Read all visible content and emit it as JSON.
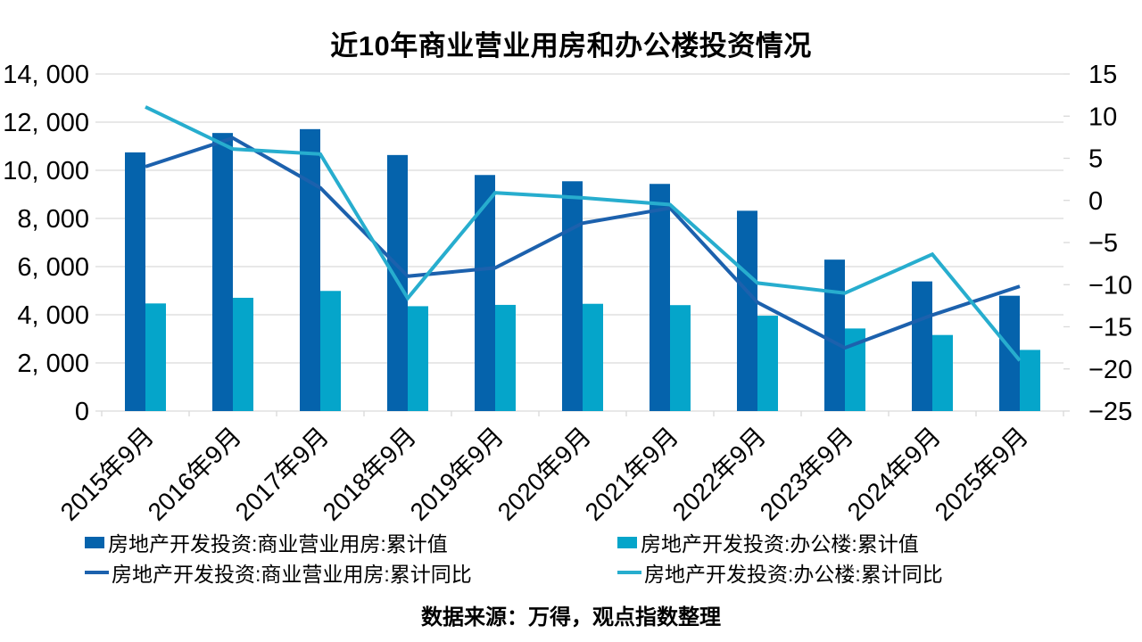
{
  "title": "近10年商业营业用房和办公楼投资情况",
  "source": "数据来源：万得，观点指数整理",
  "colors": {
    "background": "#FFFFFF",
    "grid": "#D9D9D9",
    "text": "#000000",
    "bar_commercial": "#0563AC",
    "bar_office": "#05A5CA",
    "line_commercial": "#1C61AD",
    "line_office": "#27ADCE"
  },
  "left_axis": {
    "tick_labels": [
      "0",
      "2, 000",
      "4, 000",
      "6, 000",
      "8, 000",
      "10, 000",
      "12, 000",
      "14, 000"
    ],
    "tick_values": [
      0,
      2000,
      4000,
      6000,
      8000,
      10000,
      12000,
      14000
    ]
  },
  "right_axis": {
    "tick_labels": [
      "−25",
      "−20",
      "−15",
      "−10",
      "−5",
      "0",
      "5",
      "10",
      "15"
    ],
    "tick_values": [
      -25,
      -20,
      -15,
      -10,
      -5,
      0,
      5,
      10,
      15
    ]
  },
  "chart_data": {
    "type": "combo-bar-line",
    "title": "近10年商业营业用房和办公楼投资情况",
    "categories": [
      "2015年9月",
      "2016年9月",
      "2017年9月",
      "2018年9月",
      "2019年9月",
      "2020年9月",
      "2021年9月",
      "2022年9月",
      "2023年9月",
      "2024年9月",
      "2025年9月"
    ],
    "left_ylim": [
      0,
      14000
    ],
    "right_ylim": [
      -25,
      15
    ],
    "grid": "horizontal",
    "legend_position": "bottom",
    "series": [
      {
        "name": "房地产开发投资:商业营业用房:累计值",
        "type": "bar",
        "axis": "left",
        "color": "#0563AC",
        "values": [
          10745,
          11550,
          11710,
          10635,
          9805,
          9545,
          9435,
          8320,
          6290,
          5385,
          4790
        ]
      },
      {
        "name": "房地产开发投资:办公楼:累计值",
        "type": "bar",
        "axis": "left",
        "color": "#05A5CA",
        "values": [
          4470,
          4705,
          4990,
          4355,
          4410,
          4455,
          4400,
          3960,
          3430,
          3160,
          2540
        ]
      },
      {
        "name": "房地产开发投资:商业营业用房:累计同比",
        "type": "line",
        "axis": "right",
        "color": "#1C61AD",
        "values": [
          4.0,
          7.4,
          1.5,
          -9.0,
          -8.0,
          -2.7,
          -0.9,
          -12.1,
          -17.5,
          -13.6,
          -10.2
        ]
      },
      {
        "name": "房地产开发投资:办公楼:累计同比",
        "type": "line",
        "axis": "right",
        "color": "#27ADCE",
        "values": [
          11.1,
          6.1,
          5.5,
          -11.6,
          0.9,
          0.3,
          -0.5,
          -9.8,
          -11.0,
          -6.4,
          -19.0
        ]
      }
    ]
  }
}
